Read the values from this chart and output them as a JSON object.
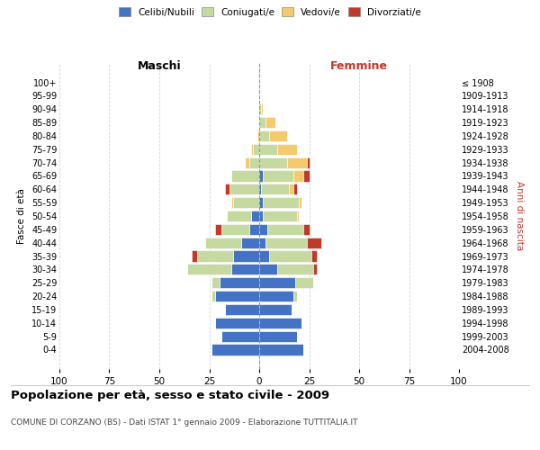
{
  "age_groups": [
    "0-4",
    "5-9",
    "10-14",
    "15-19",
    "20-24",
    "25-29",
    "30-34",
    "35-39",
    "40-44",
    "45-49",
    "50-54",
    "55-59",
    "60-64",
    "65-69",
    "70-74",
    "75-79",
    "80-84",
    "85-89",
    "90-94",
    "95-99",
    "100+"
  ],
  "birth_years": [
    "2004-2008",
    "1999-2003",
    "1994-1998",
    "1989-1993",
    "1984-1988",
    "1979-1983",
    "1974-1978",
    "1969-1973",
    "1964-1968",
    "1959-1963",
    "1954-1958",
    "1949-1953",
    "1944-1948",
    "1939-1943",
    "1934-1938",
    "1929-1933",
    "1924-1928",
    "1919-1923",
    "1914-1918",
    "1909-1913",
    "≤ 1908"
  ],
  "male": {
    "celibi": [
      24,
      19,
      22,
      17,
      22,
      20,
      14,
      13,
      9,
      5,
      4,
      0,
      0,
      0,
      0,
      0,
      0,
      0,
      0,
      0,
      0
    ],
    "coniugati": [
      0,
      0,
      0,
      0,
      2,
      4,
      22,
      18,
      18,
      14,
      12,
      13,
      15,
      14,
      5,
      3,
      0,
      0,
      0,
      0,
      0
    ],
    "vedovi": [
      0,
      0,
      0,
      0,
      0,
      0,
      0,
      0,
      0,
      0,
      0,
      1,
      0,
      0,
      2,
      1,
      1,
      0,
      0,
      0,
      0
    ],
    "divorziati": [
      0,
      0,
      0,
      0,
      0,
      0,
      0,
      3,
      0,
      3,
      0,
      0,
      2,
      0,
      0,
      0,
      0,
      0,
      0,
      0,
      0
    ]
  },
  "female": {
    "nubili": [
      22,
      19,
      21,
      16,
      17,
      18,
      9,
      5,
      3,
      4,
      2,
      2,
      1,
      2,
      0,
      0,
      0,
      0,
      0,
      0,
      0
    ],
    "coniugate": [
      0,
      0,
      0,
      0,
      2,
      9,
      18,
      21,
      21,
      18,
      17,
      18,
      14,
      15,
      14,
      9,
      5,
      3,
      1,
      0,
      0
    ],
    "vedove": [
      0,
      0,
      0,
      0,
      0,
      0,
      0,
      0,
      0,
      0,
      1,
      1,
      2,
      5,
      10,
      10,
      9,
      5,
      1,
      0,
      0
    ],
    "divorziate": [
      0,
      0,
      0,
      0,
      0,
      0,
      2,
      3,
      7,
      3,
      0,
      0,
      2,
      3,
      1,
      0,
      0,
      0,
      0,
      0,
      0
    ]
  },
  "colors": {
    "celibi": "#4472c4",
    "coniugati": "#c5d9a0",
    "vedovi": "#f5c96e",
    "divorziati": "#c0392b"
  },
  "xlim": 100,
  "title": "Popolazione per età, sesso e stato civile - 2009",
  "subtitle": "COMUNE DI CORZANO (BS) - Dati ISTAT 1° gennaio 2009 - Elaborazione TUTTITALIA.IT",
  "ylabel_left": "Fasce di età",
  "ylabel_right": "Anni di nascita",
  "maschi_color": "#000000",
  "femmine_color": "#c0392b"
}
